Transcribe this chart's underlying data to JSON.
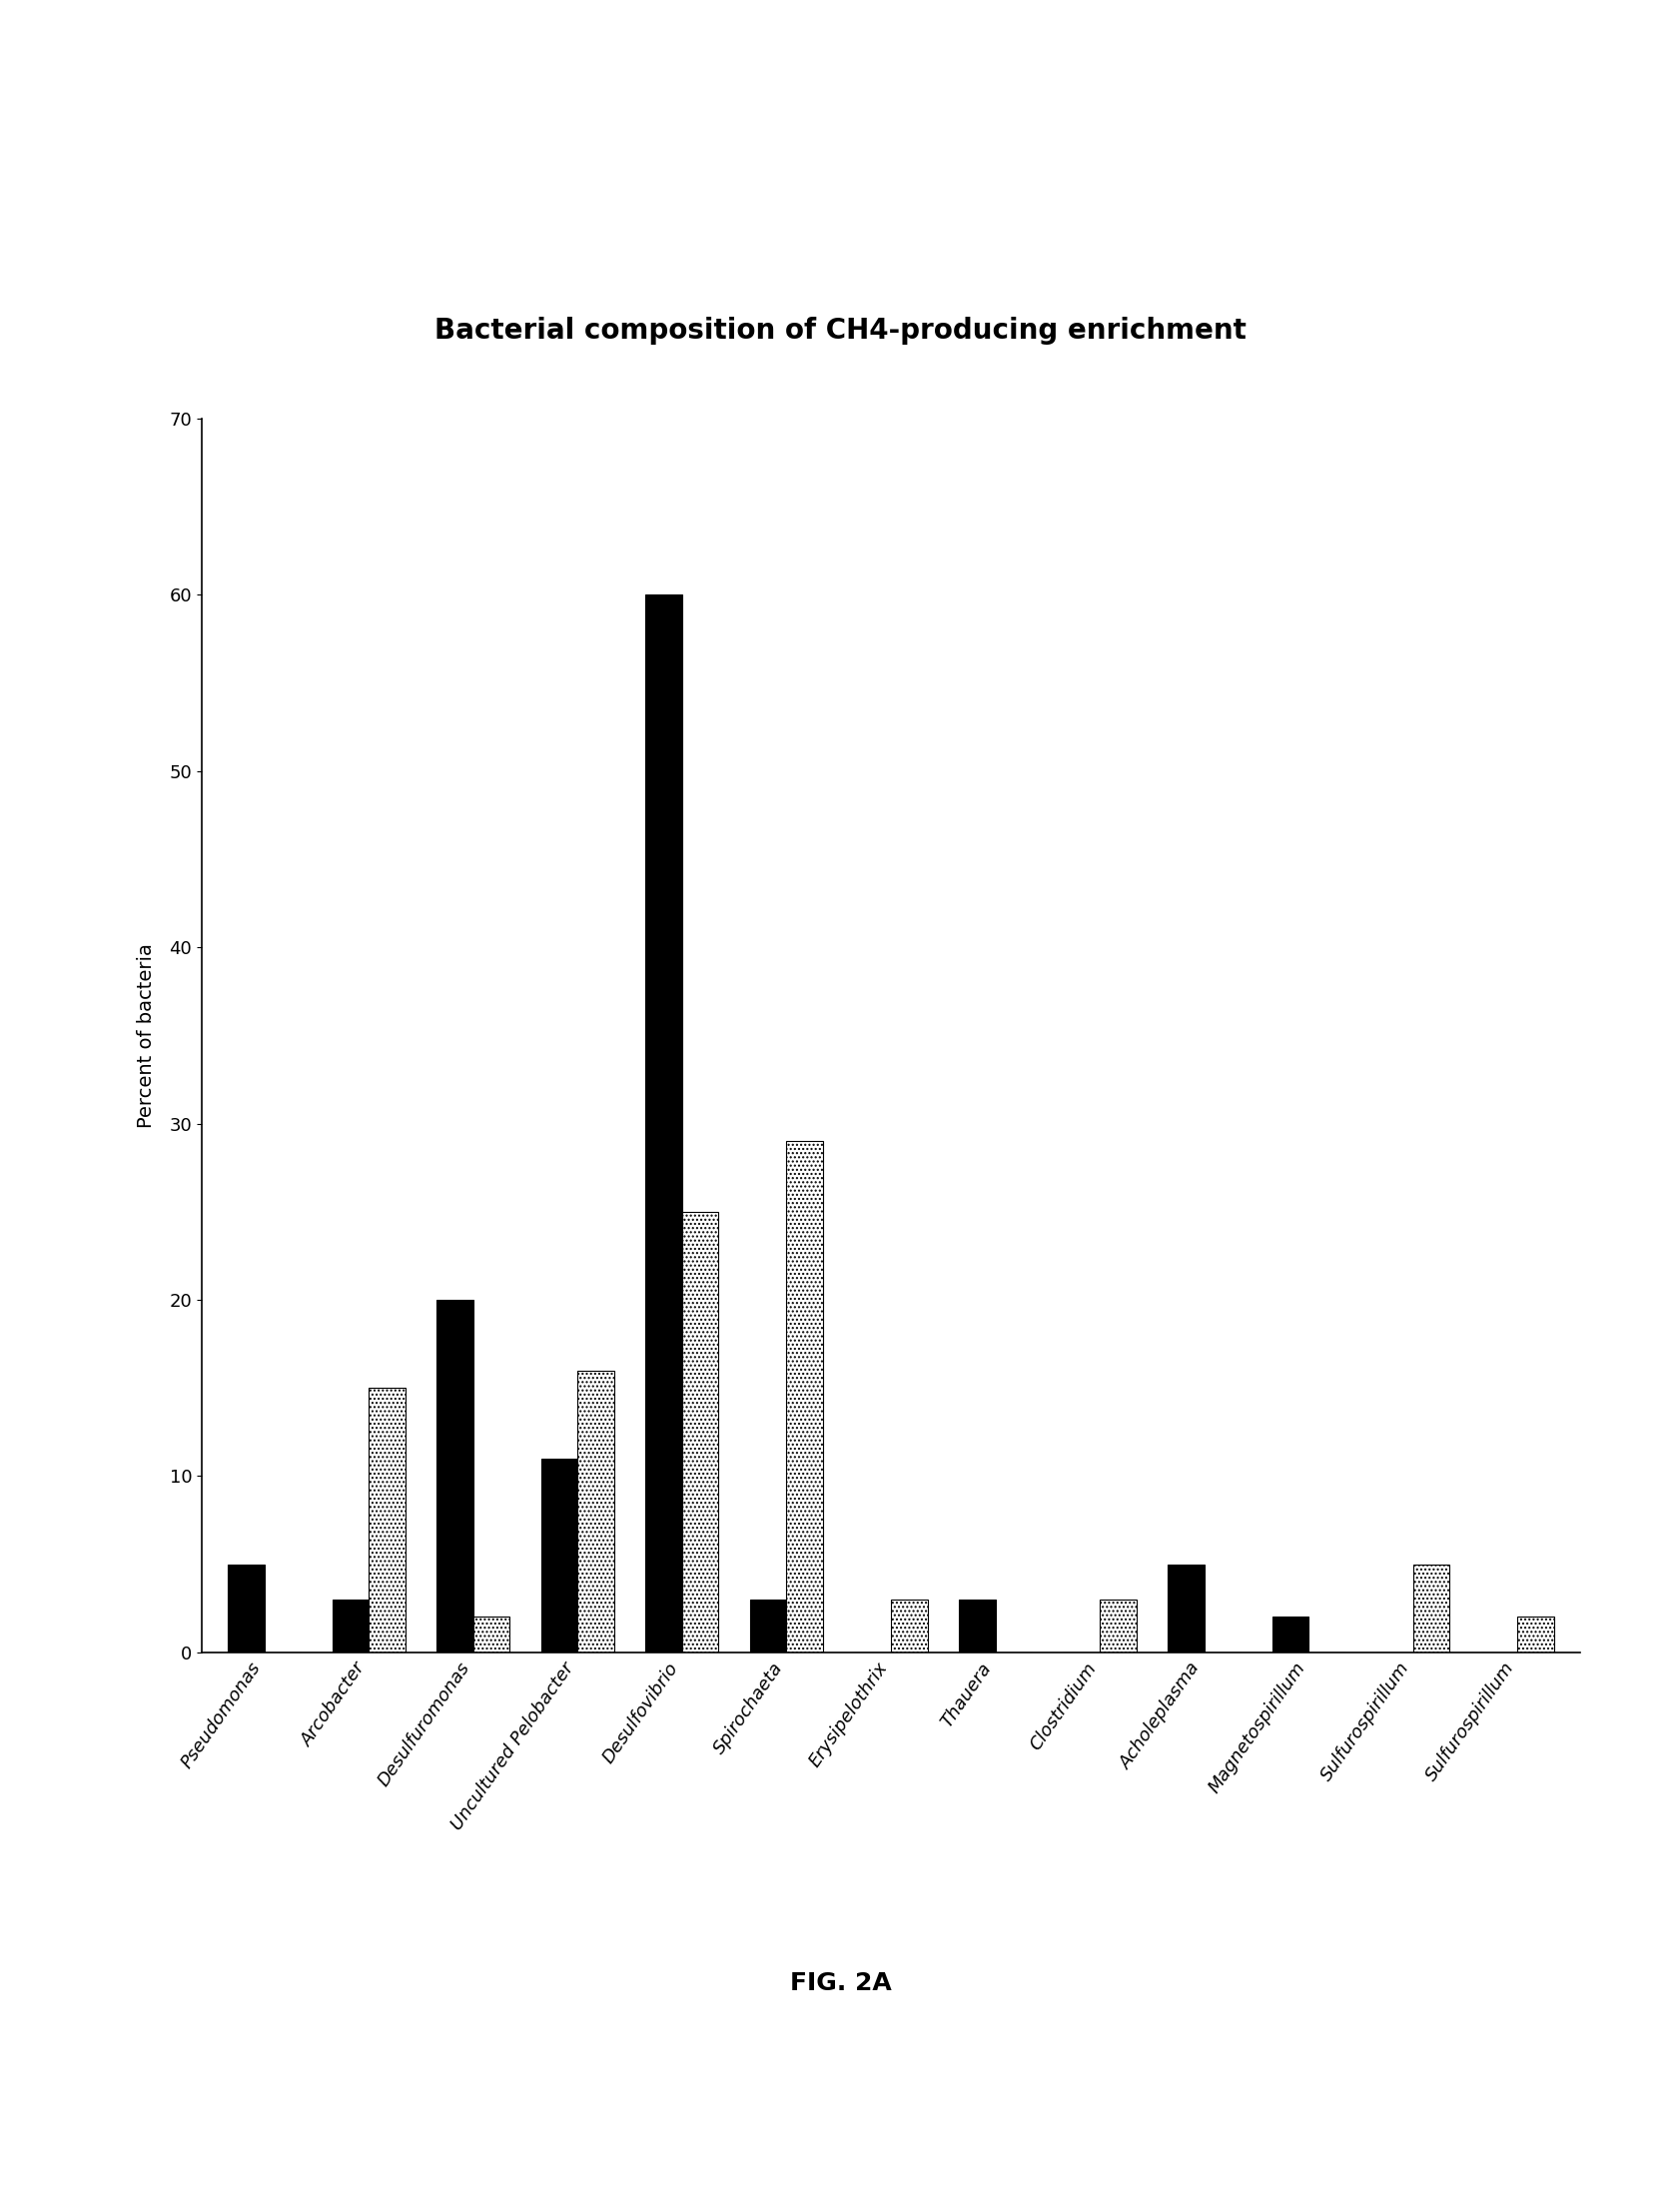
{
  "title": "Bacterial composition of CH4-producing enrichment",
  "ylabel": "Percent of bacteria",
  "categories": [
    "Pseudomonas",
    "Arcobacter",
    "Desulfuromonas",
    "Uncultured Pelobacter",
    "Desulfovibrio",
    "Spirochaeta",
    "Erysipelothrix",
    "Thauera",
    "Clostridium",
    "Acholeplasma",
    "Magnetospirillum",
    "Sulfurospirillum",
    "Sulfurospirillum"
  ],
  "series1_black": [
    5,
    3,
    20,
    11,
    60,
    3,
    0,
    3,
    0,
    5,
    2,
    0,
    0
  ],
  "series2_dotted": [
    0,
    15,
    2,
    16,
    25,
    29,
    3,
    0,
    3,
    0,
    0,
    5,
    2
  ],
  "ylim": [
    0,
    70
  ],
  "yticks": [
    0,
    10,
    20,
    30,
    40,
    50,
    60,
    70
  ],
  "figcaption": "FIG. 2A",
  "title_fontsize": 20,
  "label_fontsize": 14,
  "tick_fontsize": 13,
  "caption_fontsize": 18,
  "bar_width": 0.35
}
